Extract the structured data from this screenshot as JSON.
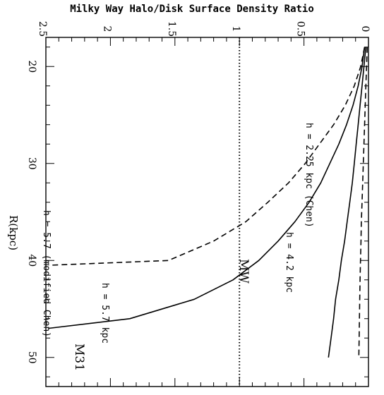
{
  "chart_data": {
    "type": "line",
    "orientation": "rotated 90 degrees clockwise",
    "title": "Milky Way Halo/Disk Surface Density Ratio",
    "xlabel": "R(kpc)",
    "ylabel": "",
    "xlim": [
      17,
      53
    ],
    "ylim": [
      0,
      2.5
    ],
    "x_ticks": [
      "20",
      "30",
      "40",
      "50"
    ],
    "y_ticks": [
      "0",
      "0.5",
      "1",
      "1.5",
      "2",
      "2.5"
    ],
    "reference_line": {
      "y": 1,
      "style": "dotted"
    },
    "series": [
      {
        "label_text": "h = 2.25 kpc (Chen)",
        "style": "dashed",
        "x": [
          18,
          20,
          22,
          24,
          26,
          28,
          30,
          32,
          34,
          36,
          38,
          40,
          40.5
        ],
        "y": [
          0.03,
          0.06,
          0.11,
          0.18,
          0.27,
          0.38,
          0.49,
          0.62,
          0.78,
          0.95,
          1.2,
          1.55,
          2.48
        ]
      },
      {
        "label_text": "h = 4.2 kpc",
        "style": "solid",
        "x": [
          18,
          20,
          22,
          24,
          26,
          28,
          30,
          32,
          34,
          36,
          38,
          40,
          42,
          44,
          46,
          47
        ],
        "y": [
          0.03,
          0.05,
          0.08,
          0.12,
          0.17,
          0.23,
          0.3,
          0.37,
          0.46,
          0.57,
          0.7,
          0.85,
          1.05,
          1.35,
          1.85,
          2.48
        ]
      },
      {
        "label_text": "h = 5.7 kpc",
        "style": "solid",
        "x": [
          18,
          20,
          22,
          24,
          26,
          28,
          30,
          32,
          34,
          36,
          38,
          40,
          42,
          44,
          46,
          48,
          50
        ],
        "y": [
          0.02,
          0.035,
          0.05,
          0.065,
          0.08,
          0.095,
          0.11,
          0.125,
          0.145,
          0.165,
          0.185,
          0.21,
          0.23,
          0.255,
          0.27,
          0.29,
          0.31
        ]
      },
      {
        "label_text": "h = 5.7 (modified Chen)",
        "style": "dashed",
        "x": [
          18,
          20,
          22,
          24,
          26,
          28,
          30,
          32,
          34,
          36,
          38,
          40,
          42,
          44,
          46,
          48,
          50
        ],
        "y": [
          0.01,
          0.015,
          0.02,
          0.025,
          0.03,
          0.035,
          0.04,
          0.045,
          0.05,
          0.055,
          0.058,
          0.062,
          0.065,
          0.068,
          0.07,
          0.072,
          0.075
        ]
      }
    ],
    "annotations": {
      "mw": "MW",
      "m31": "M31"
    }
  }
}
